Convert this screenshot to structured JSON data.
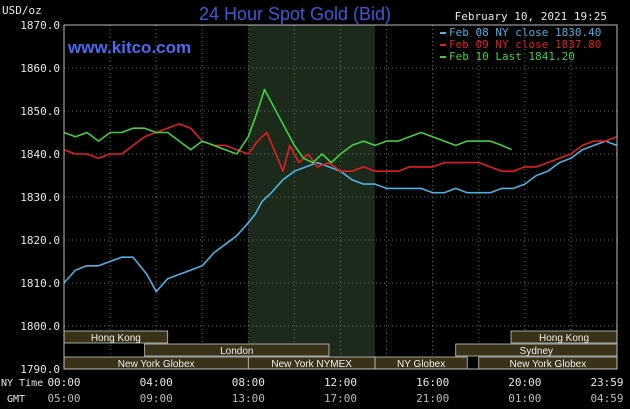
{
  "colors": {
    "background": "#000000",
    "grid": "#6a6a6a",
    "text": "#e8e8e8",
    "title": "#3c5ad8",
    "watermark": "#4a6cf0",
    "nymex_shade": "#1c2a1c",
    "session_bar": "#3a3218",
    "session_text": "#f0f0f0"
  },
  "header": {
    "unit": "USD/oz",
    "title": "24 Hour Spot Gold (Bid)",
    "datetime": "February 10, 2021 19:25",
    "watermark": "www.kitco.com"
  },
  "axis_labels": {
    "ny_time": "NY Time",
    "gmt": "GMT"
  },
  "sessions": [
    {
      "label": "Hong Kong",
      "start": -1.5,
      "end": 4.5,
      "row": 0
    },
    {
      "label": "Hong Kong",
      "start": 19.4,
      "end": 25.5,
      "row": 0
    },
    {
      "label": "London",
      "start": 3.5,
      "end": 11.5,
      "row": 1
    },
    {
      "label": "Sydney",
      "start": 17.0,
      "end": 25.5,
      "row": 1
    },
    {
      "label": "New York Globex",
      "start": -1.5,
      "end": 8.0,
      "row": 2
    },
    {
      "label": "New York NYMEX",
      "start": 8.0,
      "end": 13.5,
      "row": 2
    },
    {
      "label": "NY Globex",
      "start": 13.5,
      "end": 17.5,
      "row": 2
    },
    {
      "label": "New York Globex",
      "start": 18.0,
      "end": 25.5,
      "row": 2
    }
  ],
  "chart_data": {
    "type": "line",
    "title": "24 Hour Spot Gold (Bid)",
    "ylabel": "USD/oz",
    "ylim": [
      1790,
      1870
    ],
    "xlim_hours": [
      0,
      24
    ],
    "grid": true,
    "legend_position": "top-right",
    "y_ticks": [
      "1790.0",
      "1800.0",
      "1810.0",
      "1820.0",
      "1830.0",
      "1840.0",
      "1850.0",
      "1860.0",
      "1870.0"
    ],
    "x_ticks_ny": [
      "00:00",
      "04:00",
      "08:00",
      "12:00",
      "16:00",
      "20:00",
      "23:59"
    ],
    "x_ticks_gmt": [
      "05:00",
      "09:00",
      "13:00",
      "17:00",
      "21:00",
      "01:00",
      "04:59"
    ],
    "nymex_hours": [
      8.0,
      13.5
    ],
    "series": [
      {
        "name": "Feb 08 NY close 1830.40",
        "color": "#4fb0e0",
        "x": [
          0,
          0.5,
          1.0,
          1.5,
          2.0,
          2.5,
          3.0,
          3.3,
          3.6,
          4.0,
          4.5,
          5.0,
          5.5,
          6.0,
          6.5,
          7.0,
          7.5,
          8.0,
          8.3,
          8.6,
          9.0,
          9.5,
          10.0,
          10.5,
          11.0,
          11.5,
          12.0,
          12.5,
          13.0,
          13.5,
          14.0,
          14.5,
          15.0,
          15.5,
          16.0,
          16.5,
          17.0,
          17.5,
          18.0,
          18.5,
          19.0,
          19.5,
          20.0,
          20.5,
          21.0,
          21.5,
          22.0,
          22.5,
          23.0,
          23.5,
          23.99
        ],
        "values": [
          1810,
          1813,
          1814,
          1814,
          1815,
          1816,
          1816,
          1814,
          1812,
          1808,
          1811,
          1812,
          1813,
          1814,
          1817,
          1819,
          1821,
          1824,
          1826,
          1829,
          1831,
          1834,
          1836,
          1837,
          1838,
          1837,
          1836,
          1834,
          1833,
          1833,
          1832,
          1832,
          1832,
          1832,
          1831,
          1831,
          1832,
          1831,
          1831,
          1831,
          1832,
          1832,
          1833,
          1835,
          1836,
          1838,
          1839,
          1841,
          1842,
          1843,
          1842
        ]
      },
      {
        "name": "Feb 09 NY close 1837.80",
        "color": "#e02020",
        "x": [
          0,
          0.5,
          1.0,
          1.5,
          2.0,
          2.5,
          3.0,
          3.5,
          4.0,
          4.5,
          5.0,
          5.5,
          6.0,
          6.5,
          7.0,
          7.5,
          8.0,
          8.4,
          8.8,
          9.2,
          9.5,
          9.8,
          10.2,
          10.6,
          11.0,
          11.5,
          12.0,
          12.5,
          13.0,
          13.5,
          14.0,
          14.5,
          15.0,
          15.5,
          16.0,
          16.5,
          17.0,
          17.5,
          18.0,
          18.5,
          19.0,
          19.5,
          20.0,
          20.5,
          21.0,
          21.5,
          22.0,
          22.5,
          23.0,
          23.5,
          23.99
        ],
        "values": [
          1841,
          1840,
          1840,
          1839,
          1840,
          1840,
          1842,
          1844,
          1845,
          1846,
          1847,
          1846,
          1843,
          1842,
          1842,
          1841,
          1840,
          1843,
          1845,
          1840,
          1836,
          1842,
          1838,
          1840,
          1837,
          1838,
          1836,
          1836,
          1837,
          1836,
          1836,
          1836,
          1837,
          1837,
          1837,
          1838,
          1838,
          1838,
          1838,
          1837,
          1836,
          1836,
          1837,
          1837,
          1838,
          1839,
          1840,
          1842,
          1843,
          1843,
          1844
        ]
      },
      {
        "name": "Feb 10 Last 1841.20",
        "color": "#40d040",
        "x": [
          0,
          0.5,
          1.0,
          1.5,
          2.0,
          2.5,
          3.0,
          3.5,
          4.0,
          4.5,
          5.0,
          5.5,
          6.0,
          6.5,
          7.0,
          7.5,
          8.0,
          8.4,
          8.7,
          9.0,
          9.4,
          9.7,
          10.0,
          10.4,
          10.8,
          11.2,
          11.6,
          12.0,
          12.5,
          13.0,
          13.5,
          14.0,
          14.5,
          15.0,
          15.5,
          16.0,
          16.5,
          17.0,
          17.5,
          18.0,
          18.5,
          19.0,
          19.43
        ],
        "values": [
          1845,
          1844,
          1845,
          1843,
          1845,
          1845,
          1846,
          1846,
          1845,
          1845,
          1843,
          1841,
          1843,
          1842,
          1841,
          1840,
          1844,
          1850,
          1855,
          1852,
          1848,
          1845,
          1842,
          1839,
          1838,
          1840,
          1838,
          1840,
          1842,
          1843,
          1842,
          1843,
          1843,
          1844,
          1845,
          1844,
          1843,
          1842,
          1843,
          1843,
          1843,
          1842,
          1841
        ]
      }
    ]
  }
}
